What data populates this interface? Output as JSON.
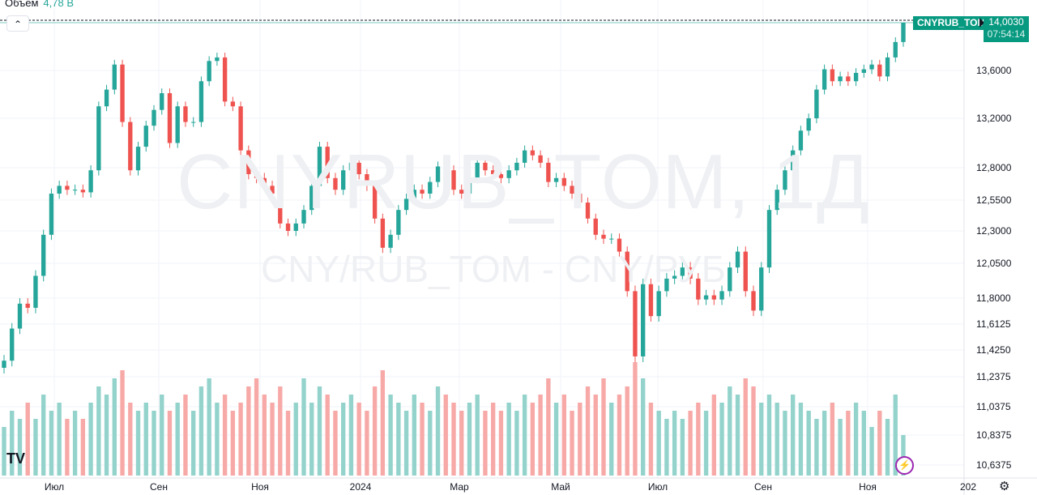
{
  "legend": {
    "volume_label": "Объем",
    "volume_value": "4,78 B"
  },
  "watermark": {
    "line1": "CNYRUB_TOM, 1Д",
    "line2": "CNY/RUB_TOM - CNY/РУБ"
  },
  "symbol_label": "CNYRUB_TOM",
  "last_price": "14,0030",
  "countdown": "07:54:14",
  "logo_text": "TV",
  "colors": {
    "up": "#26a69a",
    "down": "#ef5350",
    "up_volume": "#93d3cc",
    "down_volume": "#f7a9a7",
    "label_bg": "#089981",
    "grid": "#f0f3fa"
  },
  "icons": {
    "collapse": "chevron-up-icon",
    "flash": "lightning-icon",
    "settings": "gear-icon"
  },
  "chart_data": {
    "type": "candlestick",
    "symbol": "CNYRUB_TOM",
    "interval": "1Д",
    "y_ticks": [
      "13,6000",
      "13,2000",
      "12,8000",
      "12,5500",
      "12,3000",
      "12,0500",
      "11,8000",
      "11,6125",
      "11,4250",
      "11,2375",
      "11,0375",
      "10,8375",
      "10,6375"
    ],
    "y_tick_values": [
      13.6,
      13.2,
      12.8,
      12.55,
      12.3,
      12.05,
      11.8,
      11.6125,
      11.425,
      11.2375,
      11.0375,
      10.8375,
      10.6375
    ],
    "x_ticks": [
      "Июл",
      "Сен",
      "Ноя",
      "2024",
      "Мар",
      "Май",
      "Июл",
      "Сен",
      "Ноя",
      "202"
    ],
    "grid": true,
    "last_value": 14.003,
    "closes": [
      11.35,
      11.58,
      11.76,
      11.73,
      11.96,
      12.27,
      12.6,
      12.66,
      12.63,
      12.63,
      12.61,
      12.78,
      13.3,
      13.44,
      13.65,
      13.17,
      12.78,
      12.97,
      13.14,
      13.27,
      13.41,
      13.0,
      13.3,
      13.17,
      13.17,
      13.51,
      13.68,
      13.71,
      13.34,
      13.3,
      12.94,
      12.75,
      12.72,
      12.66,
      12.6,
      12.36,
      12.3,
      12.36,
      12.47,
      12.66,
      12.97,
      12.72,
      12.63,
      12.78,
      12.84,
      12.75,
      12.66,
      12.4,
      12.17,
      12.27,
      12.47,
      12.56,
      12.63,
      12.6,
      12.69,
      12.81,
      12.78,
      12.63,
      12.6,
      12.72,
      12.84,
      12.78,
      12.75,
      12.72,
      12.78,
      12.84,
      12.94,
      12.9,
      12.84,
      12.69,
      12.72,
      12.66,
      12.6,
      12.53,
      12.4,
      12.27,
      12.24,
      12.24,
      12.14,
      11.85,
      11.38,
      11.9,
      11.67,
      11.85,
      11.94,
      11.96,
      12.02,
      11.94,
      11.79,
      11.82,
      11.79,
      11.85,
      12.02,
      12.14,
      11.85,
      11.71,
      12.02,
      12.47,
      12.63,
      12.78,
      12.94,
      13.1,
      13.2,
      13.44,
      13.61,
      13.51,
      13.55,
      13.51,
      13.58,
      13.61,
      13.65,
      13.55,
      13.71,
      13.84,
      14.003
    ],
    "volumes_billion": [
      6,
      8,
      7,
      9,
      7,
      10,
      8,
      9,
      7,
      8,
      7,
      9,
      11,
      10,
      12,
      13,
      9,
      8,
      9,
      8,
      10,
      8,
      9,
      10,
      8,
      11,
      12,
      9,
      10,
      8,
      9,
      11,
      12,
      10,
      9,
      11,
      8,
      9,
      12,
      9,
      11,
      10,
      8,
      9,
      10,
      9,
      8,
      11,
      13,
      10,
      9,
      8,
      10,
      9,
      8,
      11,
      10,
      9,
      8,
      9,
      10,
      8,
      9,
      8,
      9,
      8,
      10,
      9,
      10,
      12,
      9,
      10,
      8,
      9,
      11,
      10,
      12,
      9,
      10,
      11,
      14,
      12,
      9,
      8,
      7,
      8,
      7,
      8,
      9,
      8,
      10,
      9,
      11,
      10,
      12,
      11,
      9,
      10,
      9,
      8,
      10,
      9,
      8,
      7,
      8,
      9,
      7,
      8,
      9,
      8,
      6,
      8,
      7,
      10,
      5
    ]
  }
}
